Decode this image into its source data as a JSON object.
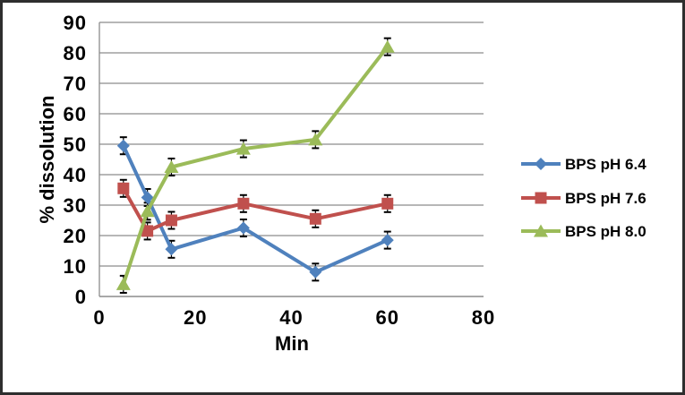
{
  "frame": {
    "background": "#ffffff",
    "border_color": "#2e2e2e"
  },
  "chart_data": {
    "type": "line",
    "title": "",
    "xlabel": "Min",
    "ylabel": "% dissolution",
    "x": [
      5,
      10,
      15,
      30,
      45,
      60
    ],
    "xlim": [
      0,
      80
    ],
    "ylim": [
      0,
      90
    ],
    "xticks": [
      0,
      20,
      40,
      60,
      80
    ],
    "yticks": [
      0,
      10,
      20,
      30,
      40,
      50,
      60,
      70,
      80,
      90
    ],
    "grid": true,
    "legend_position": "right",
    "error_bar": 2.8,
    "series": [
      {
        "name": "BPS pH 6.4",
        "marker": "diamond",
        "color": "#4F81BD",
        "values": [
          49.5,
          32.5,
          15.5,
          22.5,
          8,
          18.5
        ]
      },
      {
        "name": "BPS pH 7.6",
        "marker": "square",
        "color": "#C0504D",
        "values": [
          35.5,
          21.5,
          25,
          30.5,
          25.5,
          30.5
        ]
      },
      {
        "name": "BPS pH 8.0",
        "marker": "triangle",
        "color": "#9BBB59",
        "values": [
          4,
          28,
          42.5,
          48.5,
          51.5,
          82
        ]
      }
    ],
    "styles": {
      "gridline_color": "#8c8c8c",
      "axis_color": "#8c8c8c",
      "error_color": "#000000",
      "text_color": "#000000"
    }
  }
}
